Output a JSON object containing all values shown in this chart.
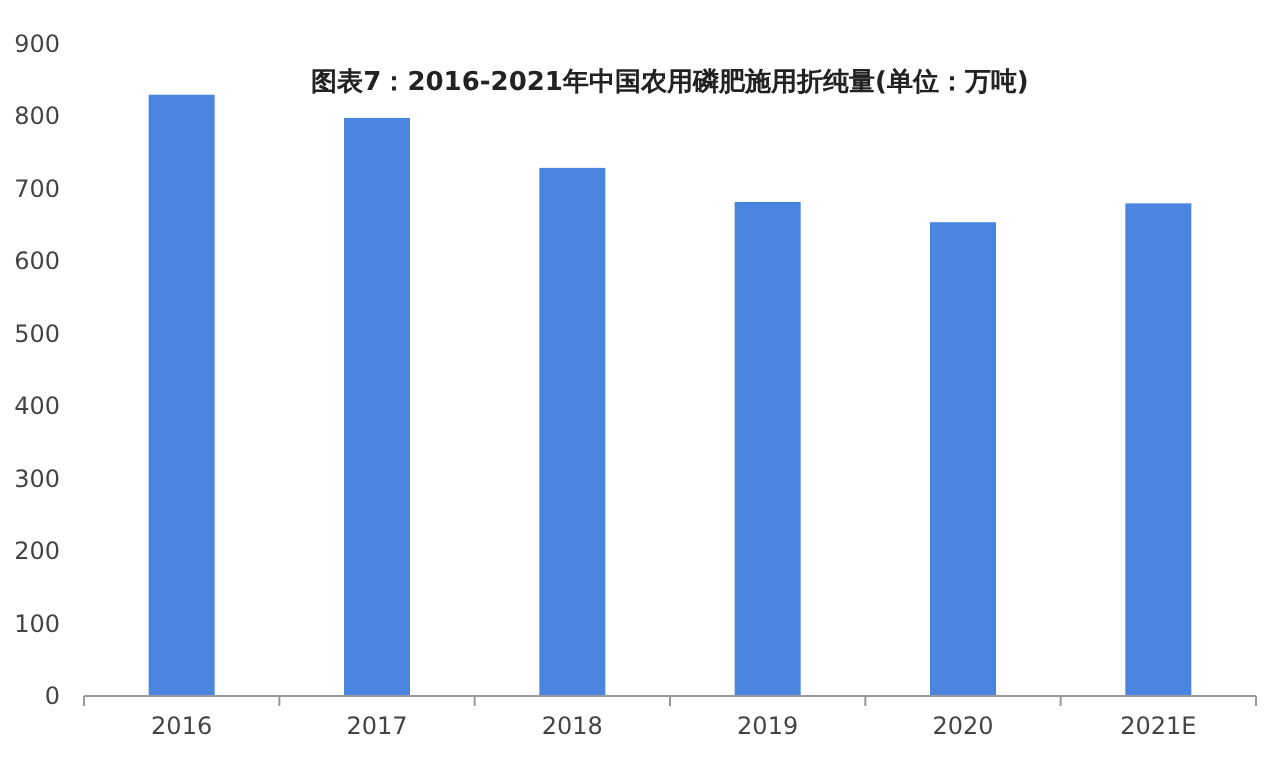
{
  "chart_data": {
    "type": "bar",
    "title": "图表7：2016-2021年中国农用磷肥施用折纯量(单位：万吨)",
    "categories": [
      "2016",
      "2017",
      "2018",
      "2019",
      "2020",
      "2021E"
    ],
    "values": [
      830,
      798,
      729,
      682,
      654,
      680
    ],
    "color": "#4a86e0",
    "ylim": [
      0,
      900
    ],
    "yticks": [
      0,
      100,
      200,
      300,
      400,
      500,
      600,
      700,
      800,
      900
    ],
    "grid": false
  }
}
